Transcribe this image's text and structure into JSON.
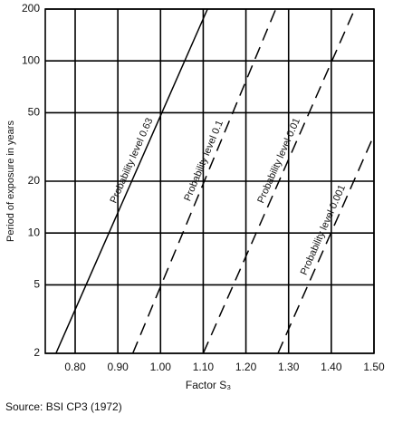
{
  "chart_data": {
    "type": "line",
    "log_y": true,
    "grid": true,
    "ylabel": "Period of exposure in years",
    "xlabel": "Factor S₃",
    "source": "Source: BSI CP3 (1972)",
    "xlim": [
      0.73,
      1.5
    ],
    "ylim": [
      2,
      200
    ],
    "xticks": [
      {
        "value": 0.8,
        "label": "0.80"
      },
      {
        "value": 0.9,
        "label": "0.90"
      },
      {
        "value": 1.0,
        "label": "1.00"
      },
      {
        "value": 1.1,
        "label": "1.10"
      },
      {
        "value": 1.2,
        "label": "1.20"
      },
      {
        "value": 1.3,
        "label": "1.30"
      },
      {
        "value": 1.4,
        "label": "1.40"
      },
      {
        "value": 1.5,
        "label": "1.50"
      }
    ],
    "yticks": [
      2,
      5,
      10,
      20,
      50,
      100,
      200
    ],
    "series": [
      {
        "name": "Probability level 0.63",
        "color": "#000000",
        "style": "solid",
        "x": [
          0.755,
          1.11
        ],
        "y": [
          2,
          200
        ]
      },
      {
        "name": "Probability level 0.1",
        "color": "#000000",
        "style": "dashed",
        "x": [
          0.935,
          1.27
        ],
        "y": [
          2,
          200
        ]
      },
      {
        "name": "Probability level 0.01",
        "color": "#000000",
        "style": "dashed",
        "x": [
          1.1,
          1.455
        ],
        "y": [
          2,
          200
        ]
      },
      {
        "name": "Probability level 0.001",
        "color": "#000000",
        "style": "dashed",
        "x": [
          1.275,
          1.5
        ],
        "y": [
          2,
          37
        ]
      }
    ]
  }
}
